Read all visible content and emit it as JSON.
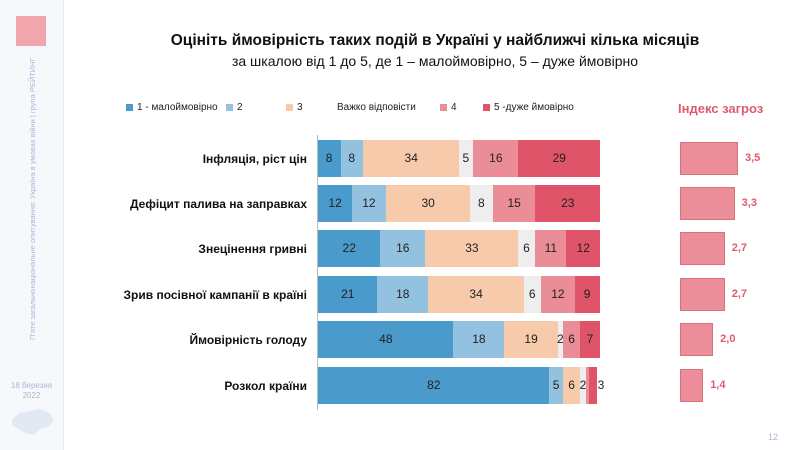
{
  "sidebar": {
    "logo_text": "РЕЙТИНГ",
    "vertical_text": "П'яте загальнонаціональне опитування: Україна в умовах війни | група РЕЙТИНГ",
    "date_line1": "18 березня",
    "date_line2": "2022"
  },
  "page_number": "12",
  "chart_data": {
    "type": "bar",
    "stacked": true,
    "orientation": "horizontal",
    "title": "Оцініть ймовірність таких подій в Україні у найближчі кілька місяців",
    "subtitle": "за шкалою від 1 до 5, де 1 – малоймовірно, 5 – дуже ймовірно",
    "legend_position": "top",
    "categories": [
      "Інфляція, ріст цін",
      "Дефіцит палива на заправках",
      "Знецінення гривні",
      "Зрив посівної кампанії в країні",
      "Ймовірність голоду",
      "Розкол країни"
    ],
    "series": [
      {
        "name": "1 - малоймовірно",
        "color": "#4a9acb",
        "values": [
          8,
          12,
          22,
          21,
          48,
          82
        ]
      },
      {
        "name": "2",
        "color": "#93c1e0",
        "values": [
          8,
          12,
          16,
          18,
          18,
          5
        ]
      },
      {
        "name": "3",
        "color": "#f7caab",
        "values": [
          34,
          30,
          33,
          34,
          19,
          6
        ]
      },
      {
        "name": "Важко відповісти",
        "color": "#eeeeee",
        "values": [
          5,
          8,
          6,
          6,
          2,
          2
        ]
      },
      {
        "name": "4",
        "color": "#ea8d97",
        "values": [
          16,
          15,
          11,
          12,
          6,
          1
        ]
      },
      {
        "name": "5 -дуже ймовірно",
        "color": "#e05469",
        "values": [
          29,
          23,
          12,
          9,
          7,
          3
        ]
      }
    ],
    "index": {
      "title": "Індекс загроз",
      "color": "#ec8e99",
      "labels": [
        "3,5",
        "3,3",
        "2,7",
        "2,7",
        "2,0",
        "1,4"
      ],
      "values": [
        3.5,
        3.3,
        2.7,
        2.7,
        2.0,
        1.4
      ]
    }
  }
}
